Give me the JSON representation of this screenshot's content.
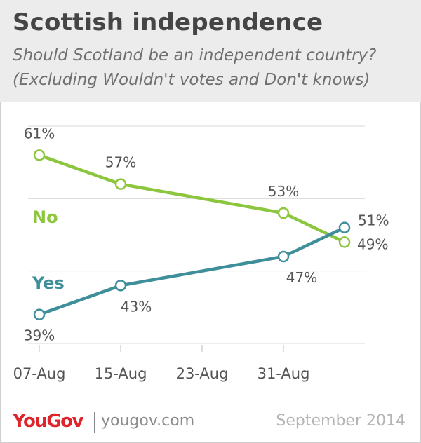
{
  "header": {
    "title": "Scottish independence",
    "subtitle_line1": "Should Scotland be an independent country?",
    "subtitle_line2": "(Excluding Wouldn't votes and Don't knows)"
  },
  "footer": {
    "logo": "YouGov",
    "url": "yougov.com",
    "date": "September 2014"
  },
  "colors": {
    "no": "#8cc63f",
    "yes": "#3f8f9b",
    "grid": "#d9d9d9",
    "text": "#555555"
  },
  "chart_data": {
    "type": "line",
    "x_tick_labels": [
      "07-Aug",
      "15-Aug",
      "23-Aug",
      "31-Aug"
    ],
    "x_tick_days": [
      7,
      15,
      23,
      31
    ],
    "x": [
      7,
      15,
      31,
      37
    ],
    "xlim": [
      7,
      39
    ],
    "ylim": [
      35,
      65
    ],
    "grid": true,
    "series": [
      {
        "name": "No",
        "color_key": "no",
        "values": [
          61,
          57,
          53,
          49
        ],
        "labels": [
          "61%",
          "57%",
          "53%",
          "49%"
        ]
      },
      {
        "name": "Yes",
        "color_key": "yes",
        "values": [
          39,
          43,
          47,
          51
        ],
        "labels": [
          "39%",
          "43%",
          "47%",
          "51%"
        ]
      }
    ]
  }
}
